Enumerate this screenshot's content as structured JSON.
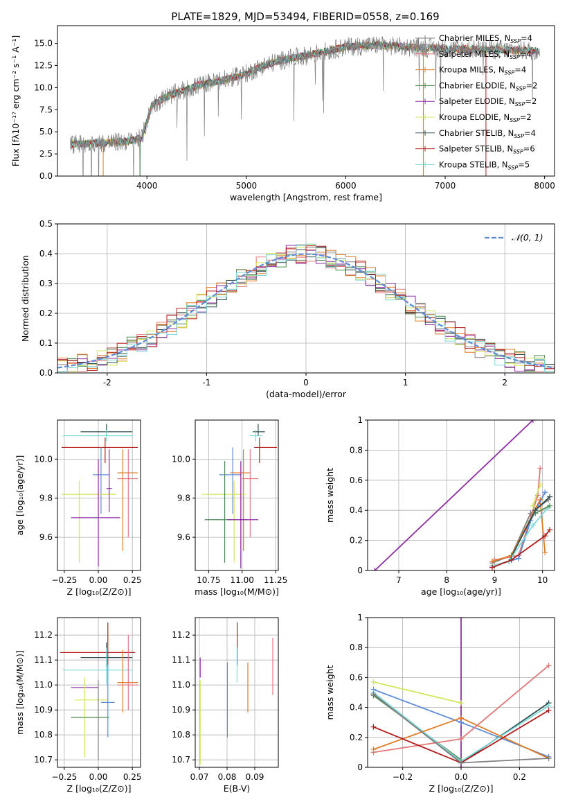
{
  "figure": {
    "title": "PLATE=1829, MJD=53494, FIBERID=0558, z=0.169"
  },
  "models": [
    {
      "name": "Chabrier MILES",
      "nssp": "4",
      "color": "#7f7f7f"
    },
    {
      "name": "Salpeter MILES",
      "nssp": "4",
      "color": "#e37777"
    },
    {
      "name": "Kroupa MILES",
      "nssp": "4",
      "color": "#e07b26"
    },
    {
      "name": "Chabrier ELODIE",
      "nssp": "2",
      "color": "#4f8a4f"
    },
    {
      "name": "Salpeter ELODIE",
      "nssp": "2",
      "color": "#8e2da3"
    },
    {
      "name": "Kroupa ELODIE",
      "nssp": "2",
      "color": "#d4e65a"
    },
    {
      "name": "Chabrier STELIB",
      "nssp": "4",
      "color": "#2f4f4f"
    },
    {
      "name": "Salpeter STELIB",
      "nssp": "6",
      "color": "#b31b1b"
    },
    {
      "name": "Kroupa STELIB",
      "nssp": "5",
      "color": "#7fd9d9"
    }
  ],
  "chart_data": [
    {
      "id": "spectrum",
      "type": "line",
      "xlabel": "wavelength [Angstrom, rest frame]",
      "ylabel": "Flux [fλ10⁻¹⁷ erg cm⁻² s⁻¹ A⁻¹]",
      "xlim": [
        3100,
        8100
      ],
      "ylim": [
        0,
        17
      ],
      "xticks": [
        4000,
        5000,
        6000,
        7000,
        8000
      ],
      "yticks": [
        0.0,
        2.5,
        5.0,
        7.5,
        10.0,
        12.5,
        15.0
      ],
      "grid": false,
      "legend": "upper right",
      "continuum": [
        [
          3230,
          3.6
        ],
        [
          3500,
          3.7
        ],
        [
          3800,
          3.9
        ],
        [
          3950,
          4.3
        ],
        [
          4050,
          8.0
        ],
        [
          4200,
          9.0
        ],
        [
          4400,
          9.8
        ],
        [
          4600,
          10.5
        ],
        [
          4800,
          10.9
        ],
        [
          5000,
          11.6
        ],
        [
          5200,
          12.6
        ],
        [
          5400,
          13.2
        ],
        [
          5600,
          13.6
        ],
        [
          5800,
          14.1
        ],
        [
          6000,
          14.6
        ],
        [
          6300,
          14.8
        ],
        [
          6600,
          14.6
        ],
        [
          7000,
          14.4
        ],
        [
          7400,
          14.3
        ],
        [
          7800,
          14.2
        ],
        [
          7950,
          14.1
        ]
      ]
    },
    {
      "id": "residuals",
      "type": "step",
      "xlabel": "(data-model)/error",
      "ylabel": "Normed distribution",
      "xlim": [
        -2.5,
        2.5
      ],
      "ylim": [
        0,
        0.5
      ],
      "xticks": [
        -2,
        -1,
        0,
        1,
        2
      ],
      "yticks": [
        0.0,
        0.1,
        0.2,
        0.3,
        0.4,
        0.5
      ],
      "grid": true,
      "legend": "upper right",
      "reference_label": "𝒩(0, 1)",
      "reference_color": "#5b8bd6"
    },
    {
      "id": "age-vs-z",
      "type": "errorbar",
      "xlabel": "Z [log₁₀(Z/Z⊙)]",
      "ylabel": "age  [log₁₀(age/yr)]",
      "xlim": [
        -0.3,
        0.31
      ],
      "ylim": [
        9.43,
        10.2
      ],
      "xticks": [
        -0.25,
        0.0,
        0.25
      ],
      "xticklabels": [
        "−0.25",
        "0.00",
        "0.25"
      ],
      "yticks": [
        9.6,
        9.8,
        10.0
      ],
      "grid": true,
      "points": [
        {
          "x": 0.06,
          "y": 10.14,
          "xerr": [
            0.19,
            0.19
          ],
          "yerr": [
            0.02,
            0.04
          ],
          "color": "#2f4f4f"
        },
        {
          "x": 0.06,
          "y": 10.12,
          "xerr": [
            0.32,
            0.19
          ],
          "yerr": [
            0.03,
            0.03
          ],
          "color": "#7fd9d9"
        },
        {
          "x": 0.05,
          "y": 10.06,
          "xerr": [
            0.32,
            0.24
          ],
          "yerr": [
            0.08,
            0.05
          ],
          "color": "#b31b1b"
        },
        {
          "x": 0.18,
          "y": 9.93,
          "xerr": [
            0.04,
            0.11
          ],
          "yerr": [
            0.4,
            0.12
          ],
          "color": "#e07b26"
        },
        {
          "x": 0.22,
          "y": 9.9,
          "xerr": [
            0.08,
            0.07
          ],
          "yerr": [
            0.3,
            0.15
          ],
          "color": "#e37777"
        },
        {
          "x": 0.02,
          "y": 9.92,
          "xerr": [
            0.06,
            0.06
          ],
          "yerr": [
            0.2,
            0.14
          ],
          "color": "#5b8bd6"
        },
        {
          "x": -0.14,
          "y": 9.82,
          "xerr": [
            0.13,
            0.27
          ],
          "yerr": [
            0.35,
            0.07
          ],
          "color": "#d4e65a"
        },
        {
          "x": 0.08,
          "y": 9.85,
          "xerr": [
            0.02,
            0.02
          ],
          "yerr": [
            0.12,
            0.2
          ],
          "color": "#8e2da3"
        },
        {
          "x": 0.0,
          "y": 9.7,
          "xerr": [
            0.2,
            0.16
          ],
          "yerr": [
            0.25,
            0.3
          ],
          "color": "#8e2da3"
        }
      ]
    },
    {
      "id": "age-vs-mass",
      "type": "errorbar",
      "xlabel": "mass [log₁₀(M/M⊙)]",
      "ylabel": "",
      "xlim": [
        10.65,
        11.27
      ],
      "ylim": [
        9.43,
        10.2
      ],
      "xticks": [
        10.75,
        11.0,
        11.25
      ],
      "xticklabels": [
        "10.75",
        "11.00",
        "11.25"
      ],
      "yticks": [
        9.6,
        9.8,
        10.0
      ],
      "grid": true,
      "points": [
        {
          "x": 11.12,
          "y": 10.14,
          "xerr": [
            0.04,
            0.05
          ],
          "yerr": [
            0.02,
            0.04
          ],
          "color": "#2f4f4f"
        },
        {
          "x": 11.1,
          "y": 10.12,
          "xerr": [
            0.04,
            0.05
          ],
          "yerr": [
            0.03,
            0.03
          ],
          "color": "#7fd9d9"
        },
        {
          "x": 11.13,
          "y": 10.06,
          "xerr": [
            0.04,
            0.13
          ],
          "yerr": [
            0.08,
            0.05
          ],
          "color": "#b31b1b"
        },
        {
          "x": 11.01,
          "y": 9.93,
          "xerr": [
            0.1,
            0.05
          ],
          "yerr": [
            0.4,
            0.12
          ],
          "color": "#e07b26"
        },
        {
          "x": 11.06,
          "y": 9.9,
          "xerr": [
            0.06,
            0.06
          ],
          "yerr": [
            0.3,
            0.15
          ],
          "color": "#e37777"
        },
        {
          "x": 10.93,
          "y": 9.92,
          "xerr": [
            0.1,
            0.06
          ],
          "yerr": [
            0.2,
            0.14
          ],
          "color": "#5b8bd6"
        },
        {
          "x": 10.94,
          "y": 9.82,
          "xerr": [
            0.24,
            0.09
          ],
          "yerr": [
            0.35,
            0.07
          ],
          "color": "#d4e65a"
        },
        {
          "x": 10.87,
          "y": 9.69,
          "xerr": [
            0.15,
            0.17
          ],
          "yerr": [
            0.22,
            0.3
          ],
          "color": "#4f8a4f"
        },
        {
          "x": 10.99,
          "y": 9.69,
          "xerr": [
            0.1,
            0.13
          ],
          "yerr": [
            0.25,
            0.3
          ],
          "color": "#8e2da3"
        }
      ]
    },
    {
      "id": "weight-vs-age",
      "type": "line",
      "xlabel": "age  [log₁₀(age/yr)]",
      "ylabel": "mass weight",
      "xlim": [
        6.35,
        10.25
      ],
      "ylim": [
        0,
        1.0
      ],
      "xticks": [
        7,
        8,
        9,
        10
      ],
      "yticks": [
        0.0,
        0.2,
        0.4,
        0.6,
        0.8,
        1.0
      ],
      "grid": true,
      "series": [
        {
          "color": "#8e2da3",
          "x": [
            6.5,
            9.8
          ],
          "y": [
            0.0,
            1.0
          ]
        },
        {
          "color": "#7f7f7f",
          "x": [
            8.95,
            9.35,
            9.75,
            10.12
          ],
          "y": [
            0.05,
            0.1,
            0.38,
            0.47
          ]
        },
        {
          "color": "#e37777",
          "x": [
            9.0,
            9.5,
            9.9,
            9.95
          ],
          "y": [
            0.07,
            0.1,
            0.5,
            0.68
          ]
        },
        {
          "color": "#e07b26",
          "x": [
            8.95,
            9.35,
            9.95,
            10.05
          ],
          "y": [
            0.06,
            0.1,
            0.47,
            0.12
          ]
        },
        {
          "color": "#d4e65a",
          "x": [
            9.8,
            9.95
          ],
          "y": [
            0.43,
            0.57
          ]
        },
        {
          "color": "#5b8bd6",
          "x": [
            8.95,
            9.5,
            9.75,
            10.05
          ],
          "y": [
            0.03,
            0.08,
            0.33,
            0.52
          ]
        },
        {
          "color": "#2f4f4f",
          "x": [
            8.95,
            9.3,
            9.85,
            10.15
          ],
          "y": [
            0.03,
            0.06,
            0.4,
            0.49
          ]
        },
        {
          "color": "#7fd9d9",
          "x": [
            8.95,
            9.3,
            9.8,
            10.12
          ],
          "y": [
            0.03,
            0.06,
            0.3,
            0.42
          ]
        },
        {
          "color": "#b31b1b",
          "x": [
            8.95,
            9.35,
            10.05,
            10.15
          ],
          "y": [
            0.02,
            0.07,
            0.23,
            0.27
          ]
        },
        {
          "color": "#4f8a4f",
          "x": [
            9.85,
            10.15
          ],
          "y": [
            0.38,
            0.43
          ]
        }
      ]
    },
    {
      "id": "mass-vs-z",
      "type": "errorbar",
      "xlabel": "Z [log₁₀(Z/Z⊙)]",
      "ylabel": "mass [log₁₀(M/M⊙)]",
      "xlim": [
        -0.3,
        0.31
      ],
      "ylim": [
        10.67,
        11.27
      ],
      "xticks": [
        -0.25,
        0.0,
        0.25
      ],
      "xticklabels": [
        "−0.25",
        "0.00",
        "0.25"
      ],
      "yticks": [
        10.7,
        10.8,
        10.9,
        11.0,
        11.1,
        11.2
      ],
      "grid": true,
      "points": [
        {
          "x": 0.07,
          "y": 11.13,
          "xerr": [
            0.35,
            0.2
          ],
          "yerr": [
            0.05,
            0.12
          ],
          "color": "#b31b1b"
        },
        {
          "x": 0.06,
          "y": 11.11,
          "xerr": [
            0.19,
            0.19
          ],
          "yerr": [
            0.04,
            0.06
          ],
          "color": "#2f4f4f"
        },
        {
          "x": 0.06,
          "y": 11.06,
          "xerr": [
            0.32,
            0.19
          ],
          "yerr": [
            0.06,
            0.09
          ],
          "color": "#7fd9d9"
        },
        {
          "x": 0.18,
          "y": 11.01,
          "xerr": [
            0.04,
            0.11
          ],
          "yerr": [
            0.12,
            0.13
          ],
          "color": "#e07b26"
        },
        {
          "x": 0.22,
          "y": 11.0,
          "xerr": [
            0.08,
            0.07
          ],
          "yerr": [
            0.1,
            0.2
          ],
          "color": "#e37777"
        },
        {
          "x": -0.2,
          "y": 10.99,
          "xerr": [
            0.0,
            0.2
          ],
          "yerr": [
            0.0,
            0.0
          ],
          "color": "#8e2da3"
        },
        {
          "x": -0.1,
          "y": 10.94,
          "xerr": [
            0.07,
            0.17
          ],
          "yerr": [
            0.23,
            0.09
          ],
          "color": "#d4e65a"
        },
        {
          "x": 0.07,
          "y": 10.93,
          "xerr": [
            0.05,
            0.05
          ],
          "yerr": [
            0.14,
            0.15
          ],
          "color": "#5b8bd6"
        },
        {
          "x": -0.1,
          "y": 10.87,
          "xerr": [
            0.1,
            0.18
          ],
          "yerr": [
            0.0,
            0.0
          ],
          "color": "#4f8a4f"
        },
        {
          "x": 0.0,
          "y": 10.95,
          "xerr": [
            0.0,
            0.0
          ],
          "yerr": [
            0.25,
            0.07
          ],
          "color": "#7f7f7f"
        }
      ]
    },
    {
      "id": "mass-vs-ebv",
      "type": "errorbar",
      "xlabel": "E(B-V)",
      "ylabel": "",
      "xlim": [
        0.0685,
        0.0985
      ],
      "ylim": [
        10.67,
        11.27
      ],
      "xticks": [
        0.07,
        0.08,
        0.09
      ],
      "xticklabels": [
        "0.07",
        "0.08",
        "0.09"
      ],
      "yticks": [
        10.7,
        10.8,
        10.9,
        11.0,
        11.1,
        11.2
      ],
      "grid": true,
      "points": [
        {
          "x": 0.0703,
          "y": 11.07,
          "xerr": [
            0.0,
            0.0
          ],
          "yerr": [
            0.04,
            0.04
          ],
          "color": "#8e2da3"
        },
        {
          "x": 0.0703,
          "y": 10.85,
          "xerr": [
            0.0,
            0.0
          ],
          "yerr": [
            0.17,
            0.17
          ],
          "color": "#d4e65a"
        },
        {
          "x": 0.0801,
          "y": 10.94,
          "xerr": [
            0.0,
            0.0
          ],
          "yerr": [
            0.15,
            0.15
          ],
          "color": "#5b8bd6"
        },
        {
          "x": 0.0837,
          "y": 11.13,
          "xerr": [
            0.0,
            0.0
          ],
          "yerr": [
            0.05,
            0.12
          ],
          "color": "#b31b1b"
        },
        {
          "x": 0.0836,
          "y": 11.08,
          "xerr": [
            0.0,
            0.0
          ],
          "yerr": [
            0.07,
            0.07
          ],
          "color": "#7fd9d9"
        },
        {
          "x": 0.0875,
          "y": 10.99,
          "xerr": [
            0.0,
            0.0
          ],
          "yerr": [
            0.1,
            0.1
          ],
          "color": "#e07b26"
        },
        {
          "x": 0.0965,
          "y": 11.07,
          "xerr": [
            0.0,
            0.0
          ],
          "yerr": [
            0.11,
            0.12
          ],
          "color": "#e37777"
        }
      ]
    },
    {
      "id": "weight-vs-z",
      "type": "line",
      "xlabel": "Z [log₁₀(Z/Z⊙)]",
      "ylabel": "mass weight",
      "xlim": [
        -0.32,
        0.32
      ],
      "ylim": [
        0,
        1.0
      ],
      "xticks": [
        -0.2,
        0.0,
        0.2
      ],
      "xticklabels": [
        "−0.2",
        "0.0",
        "0.2"
      ],
      "yticks": [
        0.0,
        0.2,
        0.4,
        0.6,
        0.8,
        1.0
      ],
      "grid": true,
      "series": [
        {
          "color": "#8e2da3",
          "x": [
            0.0,
            0.0
          ],
          "y": [
            0.0,
            1.0
          ]
        },
        {
          "color": "#d4e65a",
          "x": [
            -0.3,
            0.0
          ],
          "y": [
            0.57,
            0.43
          ]
        },
        {
          "color": "#5b8bd6",
          "x": [
            -0.3,
            0.0,
            0.3
          ],
          "y": [
            0.52,
            0.3,
            0.07
          ]
        },
        {
          "color": "#4f8a4f",
          "x": [
            -0.3,
            0.0
          ],
          "y": [
            0.48,
            0.05
          ]
        },
        {
          "color": "#2f4f4f",
          "x": [
            -0.3,
            0.0,
            0.3
          ],
          "y": [
            0.49,
            0.03,
            0.43
          ]
        },
        {
          "color": "#7fd9d9",
          "x": [
            -0.3,
            0.0,
            0.3
          ],
          "y": [
            0.5,
            0.04,
            0.41
          ]
        },
        {
          "color": "#e07b26",
          "x": [
            -0.3,
            0.0,
            0.3
          ],
          "y": [
            0.12,
            0.33,
            0.06
          ]
        },
        {
          "color": "#e37777",
          "x": [
            -0.3,
            0.0,
            0.3
          ],
          "y": [
            0.1,
            0.19,
            0.68
          ]
        },
        {
          "color": "#b31b1b",
          "x": [
            -0.3,
            0.0,
            0.3
          ],
          "y": [
            0.27,
            0.03,
            0.38
          ]
        },
        {
          "color": "#7f7f7f",
          "x": [
            -0.3,
            0.0,
            0.3
          ],
          "y": [
            0.49,
            0.03,
            0.06
          ]
        }
      ]
    }
  ]
}
